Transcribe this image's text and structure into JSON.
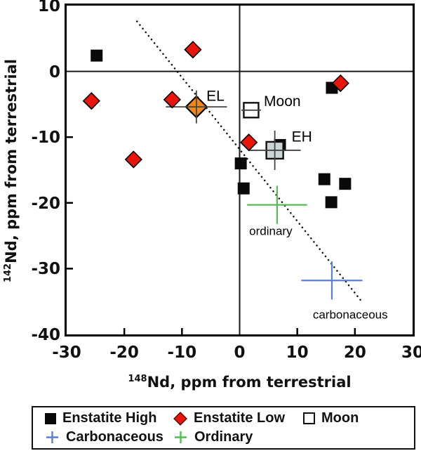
{
  "axes": {
    "y_title_sup": "142",
    "y_title_text": "Nd, ppm from terrestrial",
    "x_title_sup": "148",
    "x_title_text": "Nd, ppm from terrestrial"
  },
  "chart_data": {
    "type": "scatter",
    "xlabel": "¹⁴⁸Nd, ppm from terrestrial",
    "ylabel": "¹⁴²Nd, ppm from terrestrial",
    "xlim": [
      -30,
      30
    ],
    "ylim": [
      -40,
      10
    ],
    "x_ticks": [
      -30,
      -20,
      -10,
      0,
      10,
      20,
      30
    ],
    "y_ticks": [
      10,
      0,
      -10,
      -20,
      -30,
      -40
    ],
    "zero_lines": true,
    "grid": false,
    "trend_line": {
      "style": "dotted",
      "x1": -17.8,
      "y1": 7.6,
      "x2": 21.0,
      "y2": -34.8
    },
    "series": [
      {
        "name": "Enstatite High",
        "marker": "square",
        "color": "#0a0a0a",
        "points": [
          [
            -24.8,
            2.4
          ],
          [
            16.0,
            -2.5
          ],
          [
            7.0,
            -11.2
          ],
          [
            0.2,
            -14.0
          ],
          [
            0.7,
            -17.8
          ],
          [
            14.7,
            -16.4
          ],
          [
            18.3,
            -17.1
          ],
          [
            15.9,
            -19.9
          ]
        ]
      },
      {
        "name": "Enstatite Low",
        "marker": "diamond",
        "color": "#e8150d",
        "points": [
          [
            -25.7,
            -4.5
          ],
          [
            -11.7,
            -4.3
          ],
          [
            -8.1,
            3.3
          ],
          [
            -18.4,
            -13.4
          ],
          [
            1.6,
            -10.8
          ],
          [
            17.5,
            -1.8
          ]
        ]
      }
    ],
    "mean_markers": [
      {
        "name": "EL",
        "marker": "diamond",
        "fill": "#f0891a",
        "x": -7.5,
        "y": -5.4,
        "xerr": 5.3,
        "yerr": 2.5,
        "size": 30
      },
      {
        "name": "Moon",
        "marker": "open-square",
        "fill": "#ffffff",
        "x": 2.0,
        "y": -5.9,
        "xerr": 1.7,
        "yerr": 0,
        "size": 21
      },
      {
        "name": "EH",
        "marker": "square",
        "fill": "#ccd5d5",
        "x": 6.1,
        "y": -12.0,
        "xerr": 4.5,
        "yerr": 3.0,
        "size": 24
      },
      {
        "name": "Ordinary",
        "marker": "cross",
        "fill": "#55bb55",
        "x": 6.5,
        "y": -20.3,
        "xerr": 5.2,
        "yerr": 2.9
      },
      {
        "name": "Carbonaceous",
        "marker": "cross",
        "fill": "#5b7fd6",
        "x": 16.0,
        "y": -31.8,
        "xerr": 5.3,
        "yerr": 2.9
      }
    ],
    "annotations": [
      {
        "text": "EL",
        "x": -4.2,
        "y": -3.8,
        "size": 21
      },
      {
        "text": "Moon",
        "x": 7.4,
        "y": -4.6,
        "size": 21
      },
      {
        "text": "EH",
        "x": 10.8,
        "y": -10.0,
        "size": 21
      },
      {
        "text": "ordinary",
        "x": 5.4,
        "y": -24.3,
        "size": 17
      },
      {
        "text": "carbonaceous",
        "x": 19.2,
        "y": -37.0,
        "size": 17
      }
    ]
  },
  "legend": {
    "items": [
      {
        "label": "Enstatite High",
        "marker": "square",
        "color": "#0a0a0a"
      },
      {
        "label": "Enstatite Low",
        "marker": "diamond",
        "color": "#e8150d"
      },
      {
        "label": "Moon",
        "marker": "open-square",
        "color": "#ffffff"
      },
      {
        "label": "Carbonaceous",
        "marker": "plus",
        "color": "#5b7fd6"
      },
      {
        "label": "Ordinary",
        "marker": "plus",
        "color": "#55bb55"
      }
    ]
  }
}
